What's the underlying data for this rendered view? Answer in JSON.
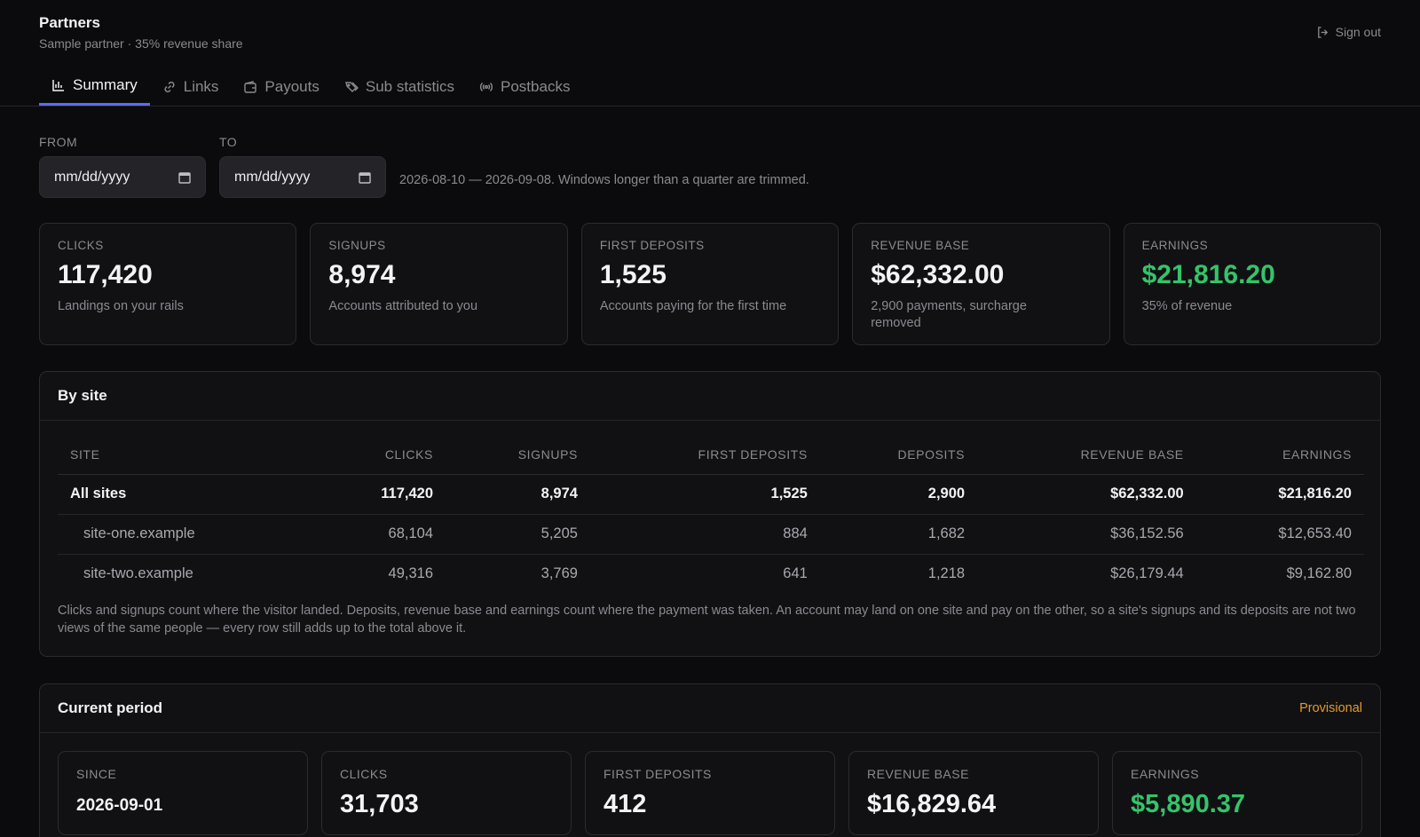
{
  "header": {
    "title": "Partners",
    "subtitle": "Sample partner · 35% revenue share",
    "sign_out": "Sign out"
  },
  "tabs": [
    {
      "label": "Summary",
      "icon": "bar-chart-icon",
      "active": true
    },
    {
      "label": "Links",
      "icon": "link-icon"
    },
    {
      "label": "Payouts",
      "icon": "wallet-icon"
    },
    {
      "label": "Sub statistics",
      "icon": "tags-icon"
    },
    {
      "label": "Postbacks",
      "icon": "broadcast-icon"
    }
  ],
  "filters": {
    "from_label": "FROM",
    "to_label": "TO",
    "from_value": "mm/dd/yyyy",
    "to_value": "mm/dd/yyyy",
    "range_note": "2026-08-10 — 2026-09-08. Windows longer than a quarter are trimmed."
  },
  "kpis": [
    {
      "label": "CLICKS",
      "value": "117,420",
      "desc": "Landings on your rails"
    },
    {
      "label": "SIGNUPS",
      "value": "8,974",
      "desc": "Accounts attributed to you"
    },
    {
      "label": "FIRST DEPOSITS",
      "value": "1,525",
      "desc": "Accounts paying for the first time"
    },
    {
      "label": "REVENUE BASE",
      "value": "$62,332.00",
      "desc": "2,900 payments, surcharge removed"
    },
    {
      "label": "EARNINGS",
      "value": "$21,816.20",
      "desc": "35% of revenue"
    }
  ],
  "by_site": {
    "title": "By site",
    "columns": [
      "SITE",
      "CLICKS",
      "SIGNUPS",
      "FIRST DEPOSITS",
      "DEPOSITS",
      "REVENUE BASE",
      "EARNINGS"
    ],
    "rows": [
      [
        "All sites",
        "117,420",
        "8,974",
        "1,525",
        "2,900",
        "$62,332.00",
        "$21,816.20"
      ],
      [
        "site-one.example",
        "68,104",
        "5,205",
        "884",
        "1,682",
        "$36,152.56",
        "$12,653.40"
      ],
      [
        "site-two.example",
        "49,316",
        "3,769",
        "641",
        "1,218",
        "$26,179.44",
        "$9,162.80"
      ]
    ],
    "note": "Clicks and signups count where the visitor landed. Deposits, revenue base and earnings count where the payment was taken. An account may land on one site and pay on the other, so a site's signups and its deposits are not two views of the same people — every row still adds up to the total above it."
  },
  "current_period": {
    "title": "Current period",
    "badge": "Provisional",
    "items": [
      {
        "label": "SINCE",
        "value": "2026-09-01"
      },
      {
        "label": "CLICKS",
        "value": "31,703"
      },
      {
        "label": "FIRST DEPOSITS",
        "value": "412"
      },
      {
        "label": "REVENUE BASE",
        "value": "$16,829.64"
      },
      {
        "label": "EARNINGS",
        "value": "$5,890.37"
      }
    ]
  },
  "colors": {
    "accent": "#5b6cf0",
    "positive": "#34c46a",
    "warning": "#e29a2c"
  }
}
